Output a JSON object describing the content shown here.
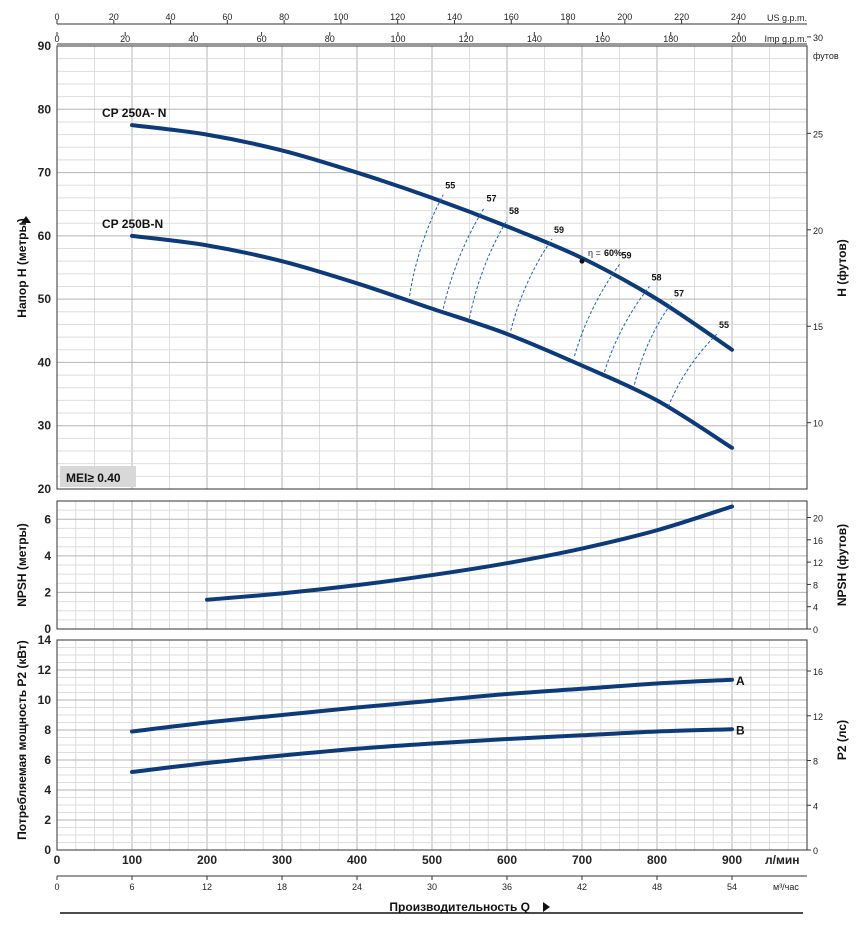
{
  "header": {
    "us_gpm_label": "US g.p.m.",
    "imp_gpm_label": "Imp g.p.m.",
    "us_gpm_ticks": [
      "0",
      "20",
      "40",
      "60",
      "80",
      "100",
      "120",
      "140",
      "160",
      "180",
      "200",
      "220",
      "240"
    ],
    "imp_gpm_ticks": [
      "0",
      "20",
      "40",
      "60",
      "80",
      "100",
      "120",
      "140",
      "160",
      "180",
      "200"
    ]
  },
  "footer": {
    "lmin_label": "л/мин",
    "m3h_label": "м³/час",
    "lmin_ticks": [
      "0",
      "100",
      "200",
      "300",
      "400",
      "500",
      "600",
      "700",
      "800",
      "900"
    ],
    "m3h_ticks": [
      "0",
      "6",
      "12",
      "18",
      "24",
      "30",
      "36",
      "42",
      "48",
      "54"
    ],
    "title": "Производительность Q"
  },
  "head_panel": {
    "ylabel_left": "Напор H (метры)",
    "ylabel_right": "H (футов)",
    "right_unit": "футов",
    "left_ticks": [
      "90",
      "80",
      "70",
      "60",
      "50",
      "40",
      "30",
      "20"
    ],
    "right_ticks": [
      "30",
      "25",
      "20",
      "15",
      "10"
    ],
    "mei_label": "MEI≥ 0.40",
    "curves": [
      {
        "name": "CP 250A- N"
      },
      {
        "name": "CP 250B-N"
      }
    ],
    "eff_labels": [
      "55",
      "57",
      "58",
      "59",
      "60%",
      "59",
      "58",
      "57",
      "55"
    ],
    "eta_symbol": "η ="
  },
  "npsh_panel": {
    "ylabel_left": "NPSH (метры)",
    "ylabel_right": "NPSH (футов)",
    "left_ticks": [
      "6",
      "4",
      "2",
      "0"
    ],
    "right_ticks": [
      "20",
      "16",
      "12",
      "8",
      "4",
      "0"
    ]
  },
  "power_panel": {
    "ylabel_left": "Потребляемая мощность P2 (кВт)",
    "ylabel_right": "P2 (лс)",
    "left_ticks": [
      "14",
      "12",
      "10",
      "8",
      "6",
      "4",
      "2",
      "0"
    ],
    "right_ticks": [
      "16",
      "12",
      "8",
      "4",
      "0"
    ],
    "curve_labels": [
      "A",
      "B"
    ]
  },
  "colors": {
    "curve": "#0d3a78",
    "eff": "#1f5fbf",
    "grid": "#c8c8c8",
    "mei_bg": "#d8d8d8"
  },
  "chart_data": [
    {
      "type": "line",
      "title": "",
      "xlabel": "Производительность Q (л/мин)",
      "ylabel": "Напор H (метры)",
      "xlim": [
        0,
        1000
      ],
      "ylim": [
        20,
        90
      ],
      "series": [
        {
          "name": "CP 250A- N",
          "x": [
            100,
            200,
            300,
            400,
            500,
            600,
            700,
            800,
            900
          ],
          "y": [
            77.5,
            76,
            73.5,
            70,
            66,
            61.5,
            56.5,
            50,
            42
          ]
        },
        {
          "name": "CP 250B-N",
          "x": [
            100,
            200,
            300,
            400,
            500,
            600,
            700,
            800,
            900
          ],
          "y": [
            60,
            58.5,
            56,
            52.5,
            48.5,
            44.5,
            39.5,
            34,
            26.5
          ]
        }
      ],
      "efficiency_lines": [
        {
          "label": "55",
          "x": [
            470,
            515
          ],
          "y": [
            50.5,
            66.5
          ]
        },
        {
          "label": "57",
          "x": [
            515,
            570
          ],
          "y": [
            48.5,
            64.5
          ]
        },
        {
          "label": "58",
          "x": [
            550,
            600
          ],
          "y": [
            47,
            62.5
          ]
        },
        {
          "label": "59",
          "x": [
            605,
            660
          ],
          "y": [
            45,
            59.5
          ]
        },
        {
          "label": "59",
          "x": [
            690,
            750
          ],
          "y": [
            41,
            55.5
          ]
        },
        {
          "label": "58",
          "x": [
            730,
            790
          ],
          "y": [
            38.5,
            52
          ]
        },
        {
          "label": "57",
          "x": [
            770,
            820
          ],
          "y": [
            36.5,
            49.5
          ]
        },
        {
          "label": "55",
          "x": [
            815,
            880
          ],
          "y": [
            33,
            44.5
          ]
        }
      ],
      "best_efficiency_point": {
        "label": "60%",
        "x": 700,
        "y": 56
      }
    },
    {
      "type": "line",
      "title": "",
      "xlabel": "Производительность Q (л/мин)",
      "ylabel": "NPSH (метры)",
      "xlim": [
        0,
        1000
      ],
      "ylim": [
        0,
        7
      ],
      "series": [
        {
          "name": "",
          "x": [
            200,
            300,
            400,
            500,
            600,
            700,
            800,
            900
          ],
          "y": [
            1.6,
            1.95,
            2.4,
            2.95,
            3.6,
            4.4,
            5.4,
            6.7
          ]
        }
      ]
    },
    {
      "type": "line",
      "title": "",
      "xlabel": "Производительность Q (л/мин)",
      "ylabel": "Потребляемая мощность P2 (кВт)",
      "xlim": [
        0,
        1000
      ],
      "ylim": [
        0,
        14
      ],
      "series": [
        {
          "name": "A",
          "x": [
            100,
            200,
            300,
            400,
            500,
            600,
            700,
            800,
            900
          ],
          "y": [
            7.9,
            8.5,
            9,
            9.5,
            9.95,
            10.4,
            10.75,
            11.1,
            11.35
          ]
        },
        {
          "name": "B",
          "x": [
            100,
            200,
            300,
            400,
            500,
            600,
            700,
            800,
            900
          ],
          "y": [
            5.2,
            5.8,
            6.3,
            6.75,
            7.1,
            7.4,
            7.65,
            7.9,
            8.05
          ]
        }
      ]
    }
  ]
}
